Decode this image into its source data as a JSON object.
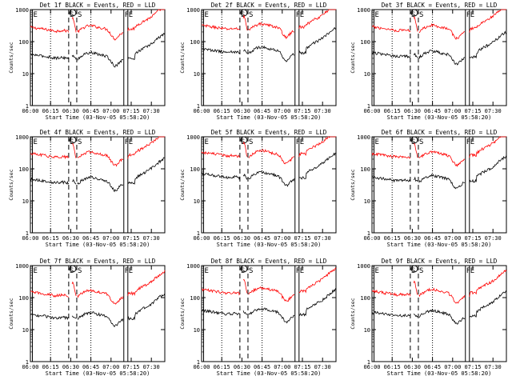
{
  "chart_data": {
    "type": "line",
    "layout": "3x3 grid of panels",
    "yscale": "log",
    "ylim": [
      1,
      1000
    ],
    "ylabel": "Counts/sec",
    "xlabel": "Start Time (03-Nov-05 05:58:20)",
    "x_range_min": [
      0,
      100
    ],
    "xtick_min": [
      0,
      15,
      30,
      45,
      60,
      75,
      90
    ],
    "xtick_labels": [
      "06:00",
      "06:15",
      "06:30",
      "06:45",
      "07:00",
      "07:15",
      "07:30"
    ],
    "ytick_values": [
      1,
      10,
      100,
      1000
    ],
    "ytick_labels": [
      "1",
      "10",
      "100",
      "1000"
    ],
    "colors": {
      "events": "#000000",
      "lld": "#ff0000"
    },
    "markers": [
      {
        "label": "E",
        "x": 1.5,
        "style": "solid"
      },
      {
        "label": "S",
        "x": 28.5,
        "style": "dashed"
      },
      {
        "label": "S",
        "x": 34.5,
        "style": "dashed"
      },
      {
        "label": "F",
        "x": 69.5,
        "style": "solid"
      },
      {
        "label": "E",
        "x": 72.5,
        "style": "solid"
      }
    ],
    "dotted_lines_x": [
      15,
      45
    ],
    "circle_marker_x": 31.5,
    "panels": [
      {
        "title": "Det 1f BLACK = Events, RED = LLD",
        "red_level": 280,
        "black_level": 40
      },
      {
        "title": "Det 2f BLACK = Events, RED = LLD",
        "red_level": 320,
        "black_level": 60
      },
      {
        "title": "Det 3f BLACK = Events, RED = LLD",
        "red_level": 290,
        "black_level": 45
      },
      {
        "title": "Det 4f BLACK = Events, RED = LLD",
        "red_level": 300,
        "black_level": 48
      },
      {
        "title": "Det 5f BLACK = Events, RED = LLD",
        "red_level": 330,
        "black_level": 70
      },
      {
        "title": "Det 6f BLACK = Events, RED = LLD",
        "red_level": 300,
        "black_level": 55
      },
      {
        "title": "Det 7f BLACK = Events, RED = LLD",
        "red_level": 150,
        "black_level": 30
      },
      {
        "title": "Det 8f BLACK = Events, RED = LLD",
        "red_level": 180,
        "black_level": 40
      },
      {
        "title": "Det 9f BLACK = Events, RED = LLD",
        "red_level": 160,
        "black_level": 35
      }
    ]
  }
}
